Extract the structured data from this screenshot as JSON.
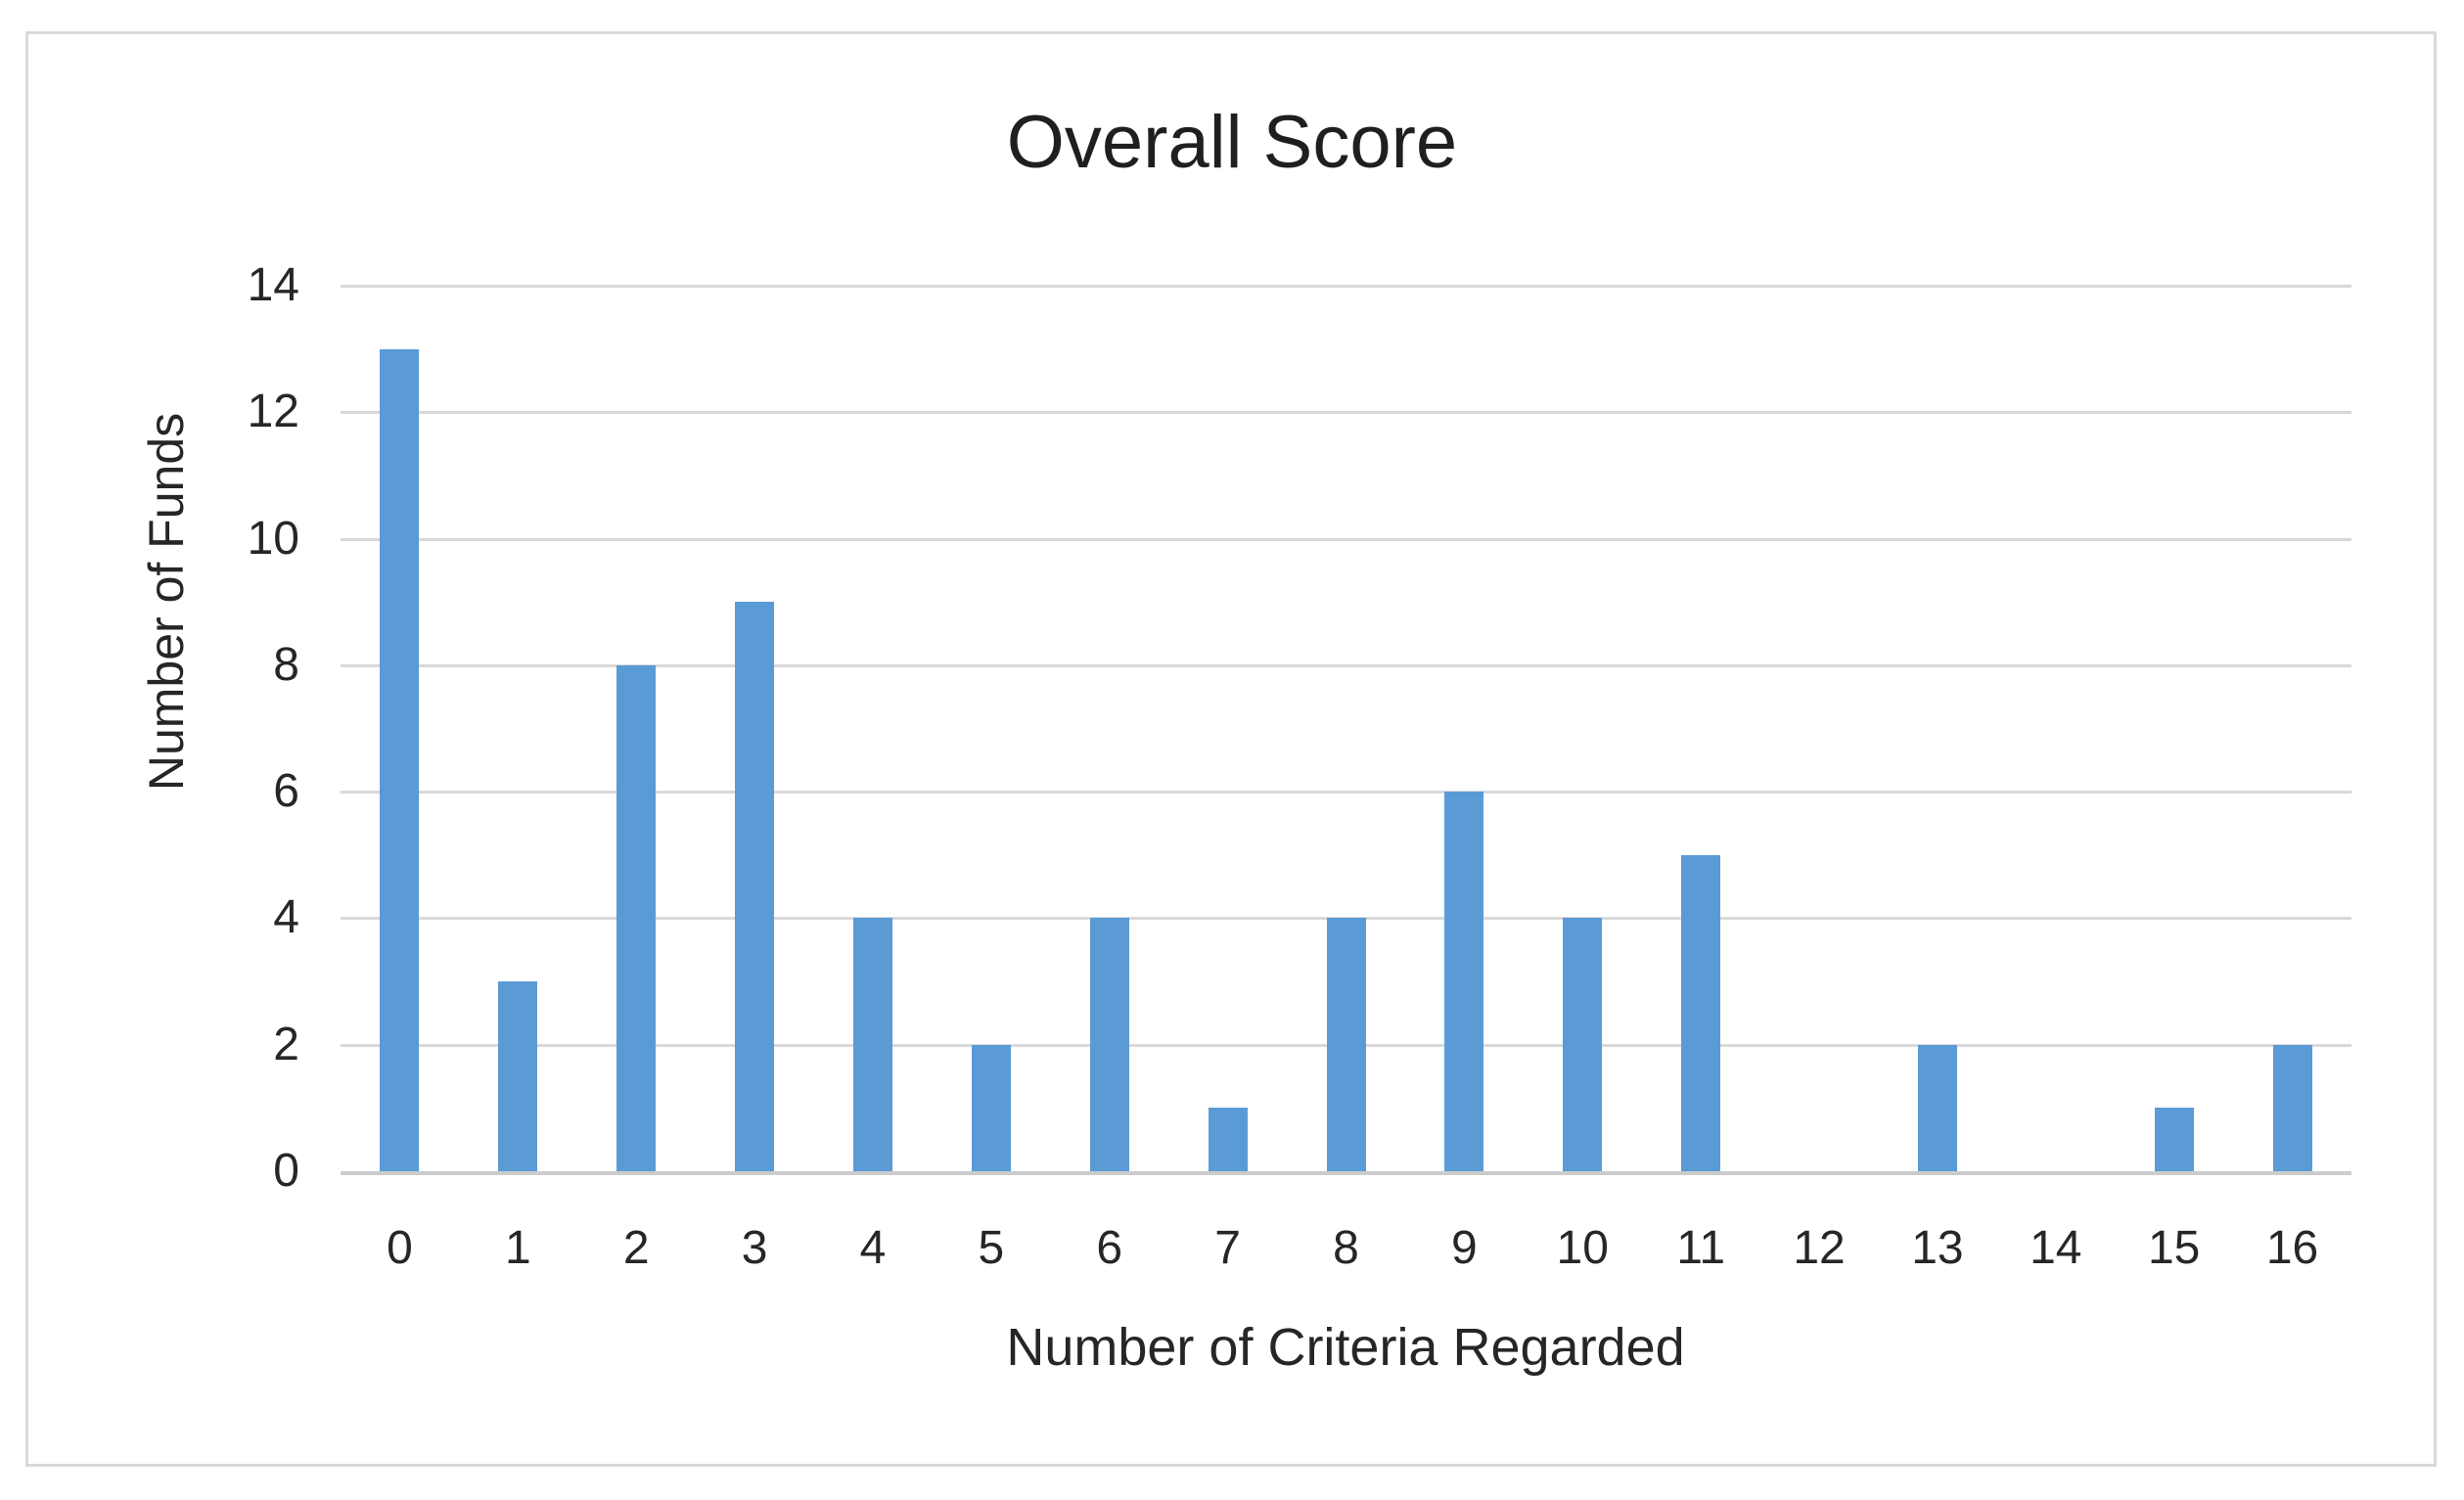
{
  "chart_data": {
    "type": "bar",
    "title": "Overall Score",
    "xlabel": "Number of Criteria Regarded",
    "ylabel": "Number of Funds",
    "categories": [
      "0",
      "1",
      "2",
      "3",
      "4",
      "5",
      "6",
      "7",
      "8",
      "9",
      "10",
      "11",
      "12",
      "13",
      "14",
      "15",
      "16"
    ],
    "values": [
      13,
      3,
      8,
      9,
      4,
      2,
      4,
      1,
      4,
      6,
      4,
      5,
      0,
      2,
      0,
      1,
      2
    ],
    "ylim": [
      0,
      14
    ],
    "yticks": [
      0,
      2,
      4,
      6,
      8,
      10,
      12,
      14
    ],
    "grid": "horizontal",
    "legend_position": "none",
    "bar_color": "#5b9bd5",
    "gridline_color": "#d9d9d9",
    "axis_line_color": "#cccccc",
    "text_color": "#262626",
    "frame_border_color": "#d9d9d9",
    "background_color": "#ffffff"
  }
}
